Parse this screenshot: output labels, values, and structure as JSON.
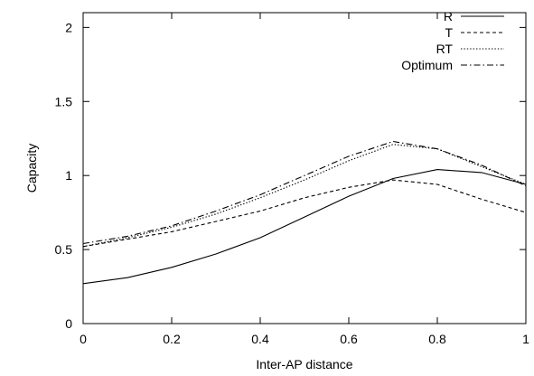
{
  "chart_data": {
    "type": "line",
    "xlabel": "Inter-AP distance",
    "ylabel": "Capacity",
    "xlim": [
      0,
      1
    ],
    "ylim": [
      0,
      2.1
    ],
    "x_ticks": [
      0,
      0.2,
      0.4,
      0.6,
      0.8,
      1
    ],
    "x_tick_labels": [
      "0",
      "0.2",
      "0.4",
      "0.6",
      "0.8",
      "1"
    ],
    "y_ticks": [
      0,
      0.5,
      1,
      1.5,
      2
    ],
    "y_tick_labels": [
      "0",
      "0.5",
      "1",
      "1.5",
      "2"
    ],
    "grid": false,
    "legend_position": "top-right",
    "x": [
      0,
      0.1,
      0.2,
      0.3,
      0.4,
      0.5,
      0.6,
      0.7,
      0.8,
      0.9,
      1.0
    ],
    "series": [
      {
        "name": "R",
        "dash": "solid",
        "values": [
          0.27,
          0.31,
          0.38,
          0.47,
          0.58,
          0.72,
          0.86,
          0.98,
          1.04,
          1.02,
          0.94
        ]
      },
      {
        "name": "T",
        "dash": "dashed",
        "values": [
          0.52,
          0.57,
          0.62,
          0.69,
          0.76,
          0.85,
          0.92,
          0.97,
          0.94,
          0.84,
          0.75
        ]
      },
      {
        "name": "RT",
        "dash": "dotted",
        "values": [
          0.52,
          0.58,
          0.65,
          0.74,
          0.85,
          0.97,
          1.1,
          1.21,
          1.18,
          1.06,
          0.94
        ]
      },
      {
        "name": "Optimum",
        "dash": "dashdot",
        "values": [
          0.54,
          0.59,
          0.66,
          0.76,
          0.87,
          1.0,
          1.13,
          1.23,
          1.18,
          1.07,
          0.93
        ]
      }
    ]
  }
}
